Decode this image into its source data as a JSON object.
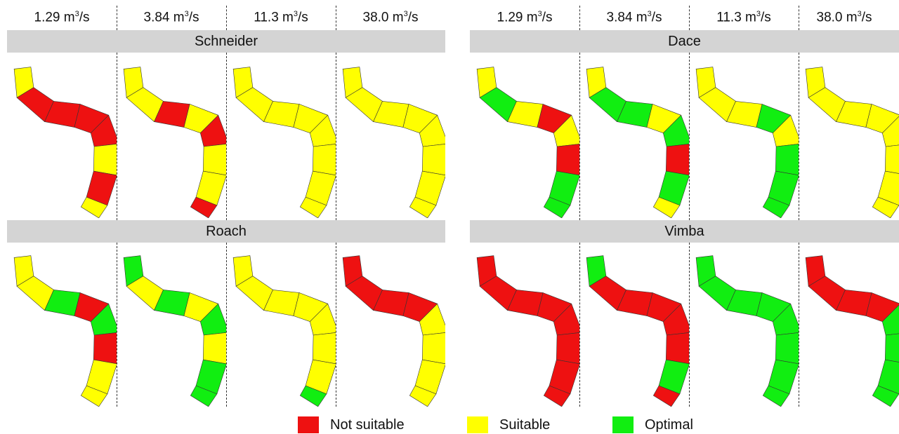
{
  "flows": [
    {
      "value": "1.29 m",
      "exp": "3",
      "unit": "/s"
    },
    {
      "value": "3.84 m",
      "exp": "3",
      "unit": "/s"
    },
    {
      "value": "11.3 m",
      "exp": "3",
      "unit": "/s"
    },
    {
      "value": "38.0 m",
      "exp": "3",
      "unit": "/s"
    }
  ],
  "species": {
    "top_left": "Schneider",
    "top_right": "Dace",
    "bottom_left": "Roach",
    "bottom_right": "Vimba"
  },
  "legend": {
    "not_suitable": "Not suitable",
    "suitable": "Suitable",
    "optimal": "Optimal"
  },
  "colors": {
    "not_suitable": "#ee1111",
    "suitable": "#ffff00",
    "optimal": "#11ee11"
  },
  "habitat_maps": {
    "Schneider": [
      "mostly not suitable",
      "mixed",
      "suitable",
      "suitable"
    ],
    "Dace": [
      "mixed",
      "mixed",
      "suitable and optimal",
      "suitable"
    ],
    "Roach": [
      "mixed",
      "mixed",
      "suitable and optimal",
      "not suitable and suitable"
    ],
    "Vimba": [
      "not suitable",
      "not suitable",
      "optimal",
      "not suitable and optimal"
    ]
  }
}
